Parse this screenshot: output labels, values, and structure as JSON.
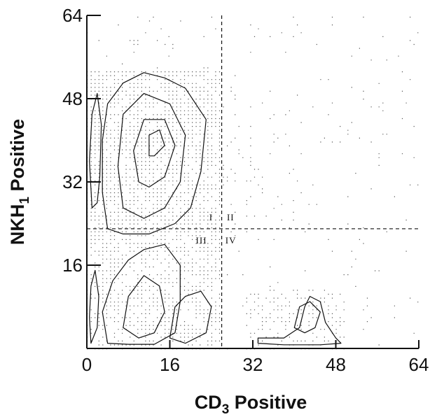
{
  "chart_data": {
    "type": "contour",
    "xlabel": "CD",
    "xlabel_sub": "3",
    "xlabel_suffix": " Positive",
    "ylabel": "NKH",
    "ylabel_sub": "1",
    "ylabel_suffix": " Positive",
    "xlim": [
      0,
      64
    ],
    "ylim": [
      0,
      64
    ],
    "x_ticks": [
      0,
      16,
      32,
      48,
      64
    ],
    "y_ticks": [
      16,
      32,
      48,
      64
    ],
    "x_tick_labels": [
      "0",
      "16",
      "32",
      "48",
      "64"
    ],
    "y_tick_labels": [
      "16",
      "32",
      "48",
      "64"
    ],
    "grid": false,
    "gates": {
      "x": 26,
      "y": 23
    },
    "quadrants": [
      {
        "label": "I",
        "x": 23.6,
        "y": 24.6
      },
      {
        "label": "II",
        "x": 27.0,
        "y": 24.6
      },
      {
        "label": "III",
        "x": 21.0,
        "y": 20.2
      },
      {
        "label": "IV",
        "x": 26.7,
        "y": 20.2
      }
    ],
    "populations": [
      {
        "name": "",
        "polygon": [
          [
            4,
            23
          ],
          [
            3,
            30
          ],
          [
            3,
            40
          ],
          [
            4,
            47
          ],
          [
            7,
            51
          ],
          [
            11,
            53
          ],
          [
            15,
            52
          ],
          [
            19,
            50
          ],
          [
            23,
            44
          ],
          [
            22,
            34
          ],
          [
            20,
            27
          ],
          [
            17,
            24
          ],
          [
            12,
            22
          ],
          [
            7,
            22
          ]
        ]
      },
      {
        "name": "",
        "polygon": [
          [
            7,
            27
          ],
          [
            6,
            35
          ],
          [
            7,
            45
          ],
          [
            11,
            49
          ],
          [
            16,
            47
          ],
          [
            19,
            41
          ],
          [
            18,
            32
          ],
          [
            15,
            27
          ],
          [
            11,
            25
          ]
        ]
      },
      {
        "name": "",
        "polygon": [
          [
            10,
            32
          ],
          [
            9,
            38
          ],
          [
            11,
            44
          ],
          [
            15,
            44
          ],
          [
            17,
            39
          ],
          [
            15,
            33
          ],
          [
            12,
            31
          ]
        ]
      },
      {
        "name": "",
        "polygon": [
          [
            12,
            37
          ],
          [
            12,
            41
          ],
          [
            14,
            42
          ],
          [
            15,
            39
          ],
          [
            13,
            37
          ]
        ]
      },
      {
        "name": "",
        "polygon": [
          [
            1,
            27
          ],
          [
            0.5,
            36
          ],
          [
            1,
            45
          ],
          [
            2,
            49
          ],
          [
            2.8,
            43
          ],
          [
            2.5,
            33
          ],
          [
            2,
            28
          ]
        ]
      },
      {
        "name": "",
        "polygon": [
          [
            4,
            1
          ],
          [
            3,
            7
          ],
          [
            5,
            13
          ],
          [
            8,
            17
          ],
          [
            11,
            19
          ],
          [
            15,
            20
          ],
          [
            18,
            16
          ],
          [
            18,
            9
          ],
          [
            17,
            3
          ],
          [
            13,
            0.8
          ],
          [
            8,
            0.8
          ]
        ]
      },
      {
        "name": "",
        "polygon": [
          [
            7,
            4
          ],
          [
            8,
            10
          ],
          [
            11,
            14
          ],
          [
            14,
            12
          ],
          [
            15,
            7
          ],
          [
            13,
            3
          ],
          [
            10,
            2
          ]
        ]
      },
      {
        "name": "",
        "polygon": [
          [
            0.8,
            1
          ],
          [
            0.5,
            6
          ],
          [
            0.8,
            12
          ],
          [
            1.6,
            15
          ],
          [
            2.3,
            10
          ],
          [
            2,
            4
          ]
        ]
      },
      {
        "name": "",
        "polygon": [
          [
            16,
            2
          ],
          [
            17,
            8
          ],
          [
            19,
            10
          ],
          [
            22,
            11
          ],
          [
            24,
            8
          ],
          [
            23,
            3
          ],
          [
            19,
            1
          ]
        ]
      },
      {
        "name": "",
        "polygon": [
          [
            33,
            1
          ],
          [
            33,
            2
          ],
          [
            38,
            2
          ],
          [
            41,
            4
          ],
          [
            42,
            8
          ],
          [
            43,
            10
          ],
          [
            45,
            9
          ],
          [
            46,
            5
          ],
          [
            48,
            2
          ],
          [
            49,
            1
          ],
          [
            45,
            0.7
          ],
          [
            38,
            0.7
          ]
        ]
      },
      {
        "name": "",
        "polygon": [
          [
            40,
            4
          ],
          [
            41,
            8
          ],
          [
            43,
            9
          ],
          [
            45,
            7
          ],
          [
            44,
            4
          ],
          [
            42,
            3
          ]
        ]
      }
    ]
  }
}
